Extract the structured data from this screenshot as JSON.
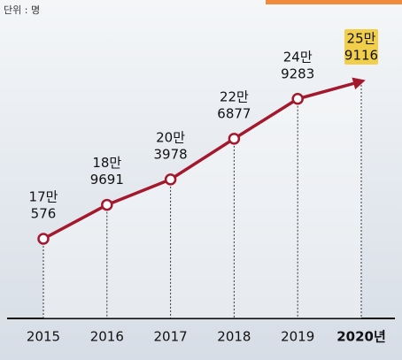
{
  "chart_data": {
    "type": "line",
    "unit_label": "단위 : 명",
    "categories": [
      "2015",
      "2016",
      "2017",
      "2018",
      "2019",
      "2020년"
    ],
    "values": [
      170576,
      189691,
      203978,
      226877,
      249283,
      259116
    ],
    "value_labels": [
      [
        "17만",
        "576"
      ],
      [
        "18만",
        "9691"
      ],
      [
        "20만",
        "3978"
      ],
      [
        "22만",
        "6877"
      ],
      [
        "24만",
        "9283"
      ],
      [
        "25만",
        "9116"
      ]
    ],
    "color": "#a3182c",
    "highlight_color": "#f2cf4a"
  }
}
